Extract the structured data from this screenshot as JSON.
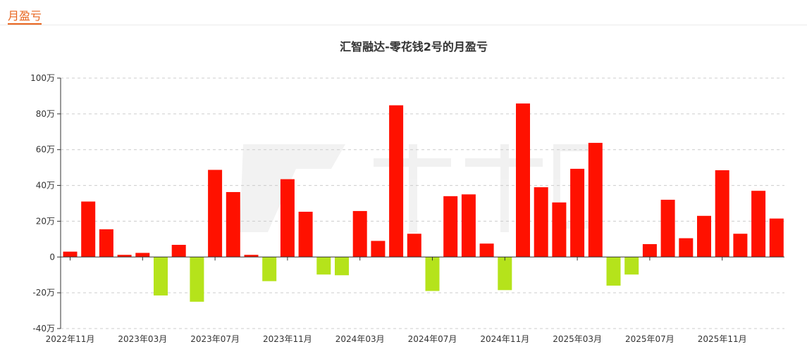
{
  "section_tab": "月盈亏",
  "colors": {
    "positive": "#ff1100",
    "negative": "#b5e31b",
    "accent": "#e8641d"
  },
  "chart_data": {
    "type": "bar",
    "title": "汇智融达-零花钱2号的月盈亏",
    "xlabel": "",
    "ylabel": "",
    "unit": "万",
    "ylim": [
      -40,
      100
    ],
    "yticks": [
      -40,
      -20,
      0,
      20,
      40,
      60,
      80,
      100
    ],
    "ytick_labels": [
      "-40万",
      "-20万",
      "0",
      "20万",
      "40万",
      "60万",
      "80万",
      "100万"
    ],
    "grid": true,
    "categories": [
      "2022年11月",
      "2022年12月",
      "2023年01月",
      "2023年02月",
      "2023年03月",
      "2023年04月",
      "2023年05月",
      "2023年06月",
      "2023年07月",
      "2023年08月",
      "2023年09月",
      "2023年10月",
      "2023年11月",
      "2023年12月",
      "2024年01月",
      "2024年02月",
      "2024年03月",
      "2024年04月",
      "2024年05月",
      "2024年06月",
      "2024年07月",
      "2024年08月",
      "2024年09月",
      "2024年10月",
      "2024年11月",
      "2024年12月",
      "2025年01月",
      "2025年02月",
      "2025年03月",
      "2025年04月",
      "2025年05月",
      "2025年06月",
      "2025年07月",
      "2025年08月",
      "2025年09月",
      "2025年10月",
      "2025年11月",
      "2025年12月",
      "2026年01月",
      "2026年02月"
    ],
    "xtick_labels": [
      {
        "index": 0,
        "label": "2022年11月"
      },
      {
        "index": 4,
        "label": "2023年03月"
      },
      {
        "index": 8,
        "label": "2023年07月"
      },
      {
        "index": 12,
        "label": "2023年11月"
      },
      {
        "index": 16,
        "label": "2024年03月"
      },
      {
        "index": 20,
        "label": "2024年07月"
      },
      {
        "index": 24,
        "label": "2024年11月"
      },
      {
        "index": 28,
        "label": "2025年03月"
      },
      {
        "index": 32,
        "label": "2025年07月"
      },
      {
        "index": 36,
        "label": "2025年11月"
      }
    ],
    "values": [
      3.0,
      31.0,
      15.5,
      1.2,
      2.3,
      -21.5,
      6.8,
      -25.0,
      48.7,
      36.3,
      1.2,
      -13.5,
      43.5,
      25.3,
      -9.8,
      -10.2,
      25.7,
      9.0,
      84.8,
      13.0,
      -19.0,
      34.0,
      35.0,
      7.5,
      -18.5,
      85.8,
      39.0,
      30.5,
      49.3,
      63.8,
      -16.0,
      -9.8,
      7.2,
      32.0,
      10.5,
      23.0,
      48.5,
      13.0,
      37.0,
      21.5
    ]
  }
}
